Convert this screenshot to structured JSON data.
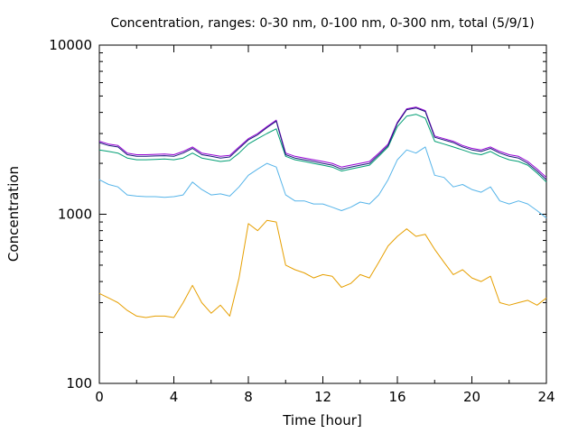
{
  "chart_data": {
    "type": "line",
    "title": "Concentration, ranges: 0-30 nm, 0-100 nm, 0-300 nm, total (5/9/1)",
    "xlabel": "Time [hour]",
    "ylabel": "Concentration",
    "xlim": [
      0,
      24
    ],
    "ylim": [
      100,
      10000
    ],
    "yscale": "log",
    "grid": false,
    "legend": "none",
    "x_ticks": [
      0,
      4,
      8,
      12,
      16,
      20,
      24
    ],
    "x_tick_labels": [
      "0",
      "4",
      "8",
      "12",
      "16",
      "20",
      "24"
    ],
    "y_ticks": [
      100,
      1000,
      10000
    ],
    "y_tick_labels": [
      "100",
      "1000",
      "10000"
    ],
    "x": [
      0,
      0.5,
      1,
      1.5,
      2,
      2.5,
      3,
      3.5,
      4,
      4.5,
      5,
      5.5,
      6,
      6.5,
      7,
      7.5,
      8,
      8.5,
      9,
      9.5,
      10,
      10.5,
      11,
      11.5,
      12,
      12.5,
      13,
      13.5,
      14,
      14.5,
      15,
      15.5,
      16,
      16.5,
      17,
      17.5,
      18,
      18.5,
      19,
      19.5,
      20,
      20.5,
      21,
      21.5,
      22,
      22.5,
      23,
      23.5,
      24
    ],
    "series": [
      {
        "color": "#e69f00",
        "values": [
          340,
          320,
          300,
          270,
          250,
          245,
          250,
          250,
          245,
          300,
          380,
          300,
          260,
          290,
          250,
          420,
          880,
          800,
          920,
          900,
          500,
          470,
          450,
          420,
          440,
          430,
          370,
          390,
          440,
          420,
          520,
          650,
          740,
          820,
          740,
          760,
          620,
          520,
          440,
          470,
          420,
          400,
          430,
          300,
          290,
          300,
          310,
          290,
          320
        ]
      },
      {
        "color": "#56b4e9",
        "values": [
          1600,
          1500,
          1450,
          1300,
          1280,
          1270,
          1270,
          1260,
          1270,
          1300,
          1550,
          1400,
          1300,
          1320,
          1280,
          1450,
          1700,
          1850,
          2000,
          1900,
          1300,
          1200,
          1200,
          1150,
          1150,
          1100,
          1050,
          1100,
          1180,
          1150,
          1300,
          1600,
          2100,
          2400,
          2300,
          2500,
          1700,
          1650,
          1450,
          1500,
          1400,
          1350,
          1450,
          1200,
          1150,
          1200,
          1150,
          1050,
          950
        ]
      },
      {
        "color": "#009e73",
        "values": [
          2400,
          2350,
          2300,
          2150,
          2100,
          2100,
          2110,
          2120,
          2100,
          2150,
          2300,
          2150,
          2100,
          2050,
          2080,
          2300,
          2600,
          2800,
          3000,
          3200,
          2200,
          2100,
          2050,
          2000,
          1950,
          1900,
          1800,
          1850,
          1900,
          1950,
          2200,
          2500,
          3300,
          3800,
          3900,
          3700,
          2700,
          2600,
          2500,
          2400,
          2300,
          2250,
          2350,
          2200,
          2100,
          2050,
          1950,
          1750,
          1550
        ]
      },
      {
        "color": "#9400d3",
        "values": [
          2700,
          2600,
          2550,
          2300,
          2250,
          2250,
          2260,
          2270,
          2250,
          2350,
          2500,
          2300,
          2250,
          2200,
          2230,
          2500,
          2800,
          3000,
          3300,
          3600,
          2300,
          2200,
          2150,
          2100,
          2050,
          2000,
          1900,
          1950,
          2000,
          2050,
          2300,
          2600,
          3500,
          4200,
          4300,
          4100,
          2900,
          2800,
          2700,
          2550,
          2450,
          2400,
          2500,
          2350,
          2250,
          2200,
          2050,
          1850,
          1650
        ]
      },
      {
        "color": "#1a1a7a",
        "values": [
          2650,
          2550,
          2500,
          2250,
          2200,
          2200,
          2210,
          2220,
          2200,
          2300,
          2450,
          2250,
          2200,
          2150,
          2180,
          2450,
          2750,
          2950,
          3250,
          3550,
          2250,
          2150,
          2100,
          2050,
          2000,
          1950,
          1850,
          1900,
          1950,
          2000,
          2250,
          2550,
          3450,
          4150,
          4250,
          4050,
          2850,
          2750,
          2650,
          2500,
          2400,
          2350,
          2450,
          2300,
          2200,
          2150,
          2000,
          1800,
          1600
        ]
      }
    ]
  }
}
